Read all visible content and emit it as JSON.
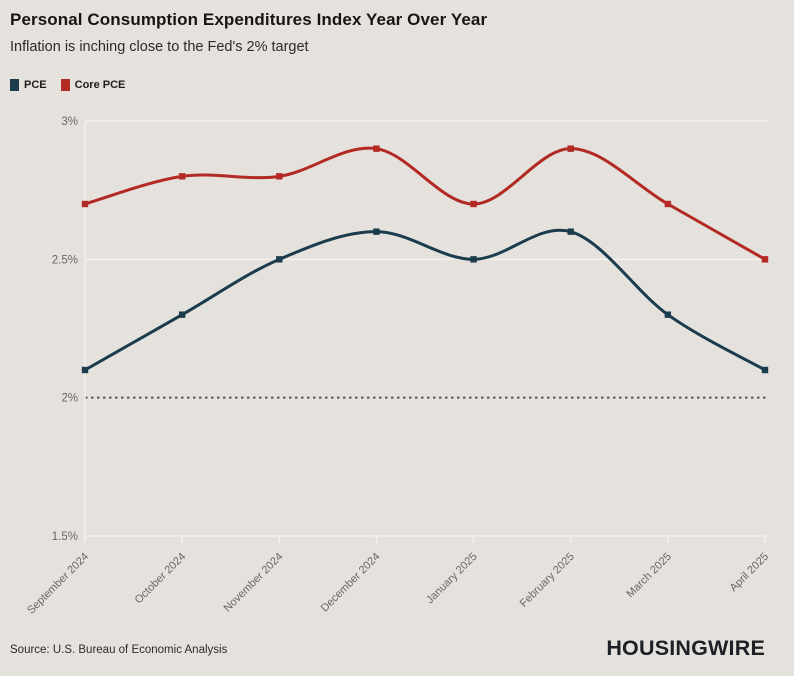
{
  "header": {
    "title": "Personal Consumption Expenditures Index Year Over Year",
    "subtitle": "Inflation is inching close to the Fed's 2% target"
  },
  "chart_data": {
    "type": "line",
    "categories": [
      "September 2024",
      "October 2024",
      "November 2024",
      "December 2024",
      "January 2025",
      "February 2025",
      "March 2025",
      "April 2025"
    ],
    "series": [
      {
        "name": "PCE",
        "color": "#1a3c4d",
        "values": [
          2.1,
          2.3,
          2.5,
          2.6,
          2.5,
          2.6,
          2.3,
          2.1
        ]
      },
      {
        "name": "Core PCE",
        "color": "#b32923",
        "values": [
          2.7,
          2.8,
          2.8,
          2.9,
          2.7,
          2.9,
          2.7,
          2.5
        ]
      }
    ],
    "ylim": [
      1.5,
      3.0
    ],
    "yticks": [
      {
        "value": 3.0,
        "label": "3%"
      },
      {
        "value": 2.5,
        "label": "2.5%"
      },
      {
        "value": 2.0,
        "label": "2%"
      },
      {
        "value": 1.5,
        "label": "1.5%"
      }
    ],
    "reference_line": 2.0,
    "grid": "horizontal",
    "legend_position": "top-left"
  },
  "footer": {
    "source": "Source: U.S. Bureau of Economic Analysis",
    "brand": "HOUSINGWIRE"
  },
  "colors": {
    "background": "#e5e1dc",
    "grid": "#f4f1ed",
    "reference": "#55524e",
    "axis_text": "#6b6863"
  }
}
